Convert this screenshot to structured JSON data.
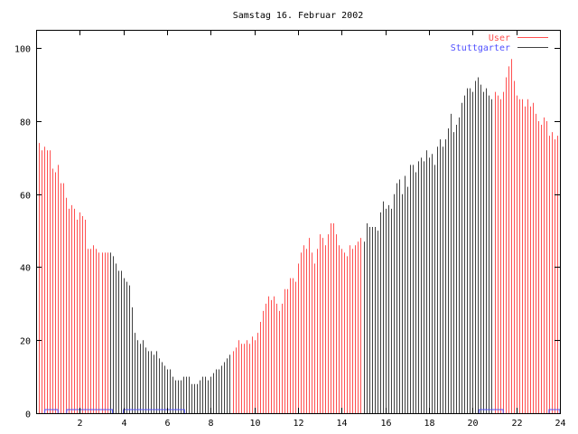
{
  "chart_data": {
    "type": "bar",
    "style": "impulses",
    "title": "Samstag 16. Februar 2002",
    "xlabel": "",
    "ylabel": "",
    "xlim": [
      0,
      24
    ],
    "ylim": [
      0,
      105
    ],
    "xticks": [
      "2",
      "4",
      "6",
      "8",
      "10",
      "12",
      "14",
      "16",
      "18",
      "20",
      "22",
      "24"
    ],
    "yticks": [
      "0",
      "20",
      "40",
      "60",
      "80",
      "100"
    ],
    "grid": false,
    "legend_position": "top-right",
    "series": [
      {
        "name": "User",
        "color": "#ff5050",
        "points": [
          [
            0,
            71
          ],
          [
            0.125,
            74
          ],
          [
            0.25,
            72
          ],
          [
            0.375,
            73
          ],
          [
            0.5,
            72
          ],
          [
            0.625,
            72
          ],
          [
            0.75,
            67
          ],
          [
            0.875,
            66
          ],
          [
            1,
            68
          ],
          [
            1.125,
            63
          ],
          [
            1.25,
            63
          ],
          [
            1.375,
            59
          ],
          [
            1.5,
            56
          ],
          [
            1.625,
            57
          ],
          [
            1.75,
            56
          ],
          [
            1.875,
            53
          ],
          [
            2,
            55
          ],
          [
            2.125,
            54
          ],
          [
            2.25,
            53
          ],
          [
            2.375,
            45
          ],
          [
            2.5,
            45
          ],
          [
            2.625,
            46
          ],
          [
            2.75,
            45
          ],
          [
            2.875,
            44
          ],
          [
            3,
            44
          ],
          [
            3.125,
            44
          ],
          [
            3.25,
            44
          ],
          [
            9,
            17
          ],
          [
            9.125,
            18
          ],
          [
            9.25,
            20
          ],
          [
            9.375,
            19
          ],
          [
            9.5,
            19
          ],
          [
            9.625,
            20
          ],
          [
            9.75,
            19
          ],
          [
            9.875,
            21
          ],
          [
            10,
            20
          ],
          [
            10.125,
            22
          ],
          [
            10.25,
            25
          ],
          [
            10.375,
            28
          ],
          [
            10.5,
            30
          ],
          [
            10.625,
            32
          ],
          [
            10.75,
            31
          ],
          [
            10.875,
            32
          ],
          [
            11,
            30
          ],
          [
            11.125,
            28
          ],
          [
            11.25,
            30
          ],
          [
            11.375,
            34
          ],
          [
            11.5,
            34
          ],
          [
            11.625,
            37
          ],
          [
            11.75,
            37
          ],
          [
            11.875,
            36
          ],
          [
            12,
            41
          ],
          [
            12.125,
            44
          ],
          [
            12.25,
            46
          ],
          [
            12.375,
            45
          ],
          [
            12.5,
            48
          ],
          [
            12.625,
            44
          ],
          [
            12.75,
            41
          ],
          [
            12.875,
            45
          ],
          [
            13,
            49
          ],
          [
            13.125,
            48
          ],
          [
            13.25,
            46
          ],
          [
            13.375,
            49
          ],
          [
            13.5,
            52
          ],
          [
            13.625,
            52
          ],
          [
            13.75,
            49
          ],
          [
            13.875,
            46
          ],
          [
            14,
            45
          ],
          [
            14.125,
            44
          ],
          [
            14.25,
            43
          ],
          [
            14.375,
            46
          ],
          [
            14.5,
            45
          ],
          [
            14.625,
            46
          ],
          [
            14.75,
            47
          ],
          [
            14.875,
            48
          ],
          [
            21,
            88
          ],
          [
            21.125,
            87
          ],
          [
            21.25,
            86
          ],
          [
            21.375,
            88
          ],
          [
            21.5,
            92
          ],
          [
            21.625,
            95
          ],
          [
            21.75,
            97
          ],
          [
            21.875,
            91
          ],
          [
            22,
            87
          ],
          [
            22.125,
            86
          ],
          [
            22.25,
            86
          ],
          [
            22.375,
            84
          ],
          [
            22.5,
            86
          ],
          [
            22.625,
            84
          ],
          [
            22.75,
            85
          ],
          [
            22.875,
            82
          ],
          [
            23,
            80
          ],
          [
            23.125,
            79
          ],
          [
            23.25,
            81
          ],
          [
            23.375,
            80
          ],
          [
            23.5,
            76
          ],
          [
            23.625,
            77
          ],
          [
            23.75,
            75
          ],
          [
            23.875,
            76
          ]
        ]
      },
      {
        "name": "Stuttgarter",
        "color": "#5050ff",
        "bar_color": "#404040",
        "points": [
          [
            3.375,
            44
          ],
          [
            3.5,
            43
          ],
          [
            3.625,
            41
          ],
          [
            3.75,
            39
          ],
          [
            3.875,
            39
          ],
          [
            4,
            37
          ],
          [
            4.125,
            36
          ],
          [
            4.25,
            35
          ],
          [
            4.375,
            29
          ],
          [
            4.5,
            22
          ],
          [
            4.625,
            20
          ],
          [
            4.75,
            19
          ],
          [
            4.875,
            20
          ],
          [
            5,
            18
          ],
          [
            5.125,
            17
          ],
          [
            5.25,
            17
          ],
          [
            5.375,
            16
          ],
          [
            5.5,
            17
          ],
          [
            5.625,
            15
          ],
          [
            5.75,
            14
          ],
          [
            5.875,
            13
          ],
          [
            6,
            12
          ],
          [
            6.125,
            12
          ],
          [
            6.25,
            10
          ],
          [
            6.375,
            9
          ],
          [
            6.5,
            9
          ],
          [
            6.625,
            9
          ],
          [
            6.75,
            10
          ],
          [
            6.875,
            10
          ],
          [
            7,
            10
          ],
          [
            7.125,
            8
          ],
          [
            7.25,
            8
          ],
          [
            7.375,
            8
          ],
          [
            7.5,
            9
          ],
          [
            7.625,
            10
          ],
          [
            7.75,
            10
          ],
          [
            7.875,
            9
          ],
          [
            8,
            10
          ],
          [
            8.125,
            11
          ],
          [
            8.25,
            12
          ],
          [
            8.375,
            12
          ],
          [
            8.5,
            13
          ],
          [
            8.625,
            14
          ],
          [
            8.75,
            15
          ],
          [
            8.875,
            16
          ],
          [
            15,
            47
          ],
          [
            15.125,
            52
          ],
          [
            15.25,
            51
          ],
          [
            15.375,
            51
          ],
          [
            15.5,
            51
          ],
          [
            15.625,
            50
          ],
          [
            15.75,
            55
          ],
          [
            15.875,
            58
          ],
          [
            16,
            56
          ],
          [
            16.125,
            57
          ],
          [
            16.25,
            56
          ],
          [
            16.375,
            60
          ],
          [
            16.5,
            63
          ],
          [
            16.625,
            64
          ],
          [
            16.75,
            60
          ],
          [
            16.875,
            65
          ],
          [
            17,
            62
          ],
          [
            17.125,
            68
          ],
          [
            17.25,
            68
          ],
          [
            17.375,
            66
          ],
          [
            17.5,
            69
          ],
          [
            17.625,
            70
          ],
          [
            17.75,
            69
          ],
          [
            17.875,
            72
          ],
          [
            18,
            70
          ],
          [
            18.125,
            71
          ],
          [
            18.25,
            68
          ],
          [
            18.375,
            73
          ],
          [
            18.5,
            75
          ],
          [
            18.625,
            73
          ],
          [
            18.75,
            75
          ],
          [
            18.875,
            78
          ],
          [
            19,
            82
          ],
          [
            19.125,
            77
          ],
          [
            19.25,
            79
          ],
          [
            19.375,
            81
          ],
          [
            19.5,
            85
          ],
          [
            19.625,
            87
          ],
          [
            19.75,
            89
          ],
          [
            19.875,
            89
          ],
          [
            20,
            88
          ],
          [
            20.125,
            91
          ],
          [
            20.25,
            92
          ],
          [
            20.375,
            90
          ],
          [
            20.5,
            88
          ],
          [
            20.625,
            89
          ],
          [
            20.75,
            87
          ],
          [
            20.875,
            86
          ]
        ]
      }
    ],
    "baseline_segments": {
      "color": "#5050ff",
      "y": 1,
      "ranges": [
        [
          0.4,
          1.0
        ],
        [
          1.4,
          3.5
        ],
        [
          4.0,
          6.8
        ],
        [
          20.3,
          21.4
        ],
        [
          23.5,
          24
        ]
      ]
    }
  }
}
